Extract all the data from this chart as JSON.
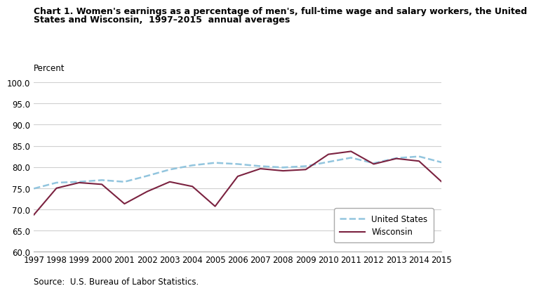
{
  "title_line1": "Chart 1. Women's earnings as a percentage of men's, full-time wage and salary workers, the United",
  "title_line2": "States and Wisconsin,  1997–2015  annual averages",
  "ylabel": "Percent",
  "source": "Source:  U.S. Bureau of Labor Statistics.",
  "years": [
    1997,
    1998,
    1999,
    2000,
    2001,
    2002,
    2003,
    2004,
    2005,
    2006,
    2007,
    2008,
    2009,
    2010,
    2011,
    2012,
    2013,
    2014,
    2015
  ],
  "us_values": [
    74.9,
    76.3,
    76.5,
    76.9,
    76.5,
    77.9,
    79.4,
    80.4,
    81.0,
    80.7,
    80.2,
    79.9,
    80.2,
    81.2,
    82.2,
    80.9,
    82.1,
    82.5,
    81.1
  ],
  "wi_values": [
    68.7,
    75.0,
    76.3,
    75.9,
    71.3,
    74.2,
    76.5,
    75.4,
    70.7,
    77.8,
    79.6,
    79.1,
    79.4,
    83.0,
    83.7,
    80.7,
    82.0,
    81.4,
    76.5
  ],
  "us_color": "#92C5DE",
  "wi_color": "#7B2240",
  "ylim_min": 60.0,
  "ylim_max": 100.0,
  "background_color": "#ffffff",
  "plot_bg_color": "#ffffff",
  "grid_color": "#d0d0d0",
  "legend_us": "United States",
  "legend_wi": "Wisconsin",
  "title_fontsize": 9.0,
  "label_fontsize": 8.5,
  "tick_fontsize": 8.5,
  "legend_fontsize": 8.5
}
